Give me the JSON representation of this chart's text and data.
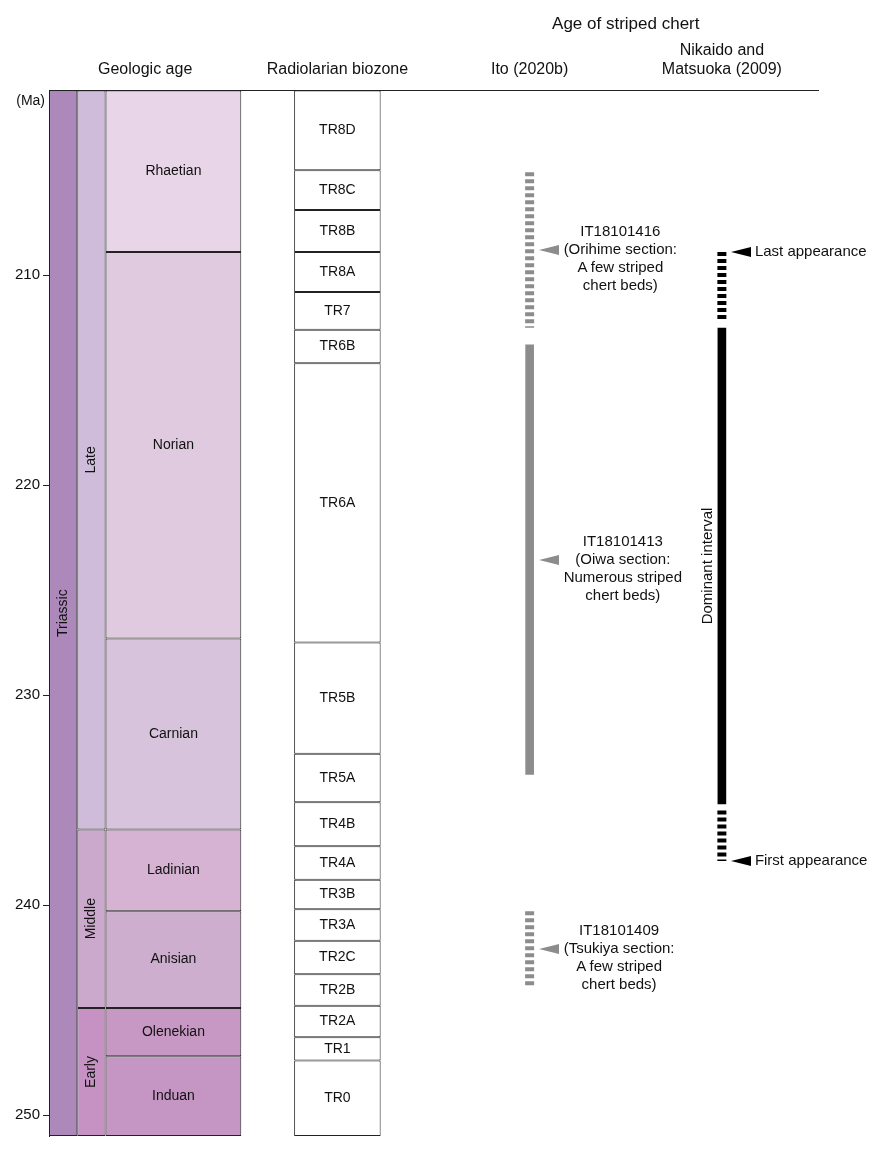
{
  "chart_data": {
    "type": "bar",
    "categories": [
      "Geologic age",
      "Radiolarian biozone",
      "Ito (2020b)",
      "Nikaido and Matsuoka (2009)"
    ],
    "ylabel": "(Ma)",
    "ylim": [
      251,
      201.2
    ],
    "yticks": [
      210,
      220,
      230,
      240,
      250
    ],
    "series": [
      {
        "color": "#ad88bb",
        "values": [
          49.8,
          null,
          null,
          null
        ],
        "base": [
          201.2,
          null,
          null,
          null
        ],
        "value_labels": [
          "Triassic",
          null,
          null,
          null
        ]
      },
      {
        "color": "#cfbcdb",
        "values": [
          35.2,
          null,
          null,
          null
        ],
        "base": [
          201.2,
          null,
          null,
          null
        ],
        "value_labels": [
          "Late",
          null,
          null,
          null
        ]
      },
      {
        "color": "#cba9cd",
        "values": [
          8.5,
          null,
          null,
          null
        ],
        "base": [
          236.4,
          null,
          null,
          null
        ],
        "value_labels": [
          "Middle",
          null,
          null,
          null
        ]
      },
      {
        "color": "#c592c3",
        "values": [
          6.1,
          null,
          null,
          null
        ],
        "base": [
          244.9,
          null,
          null,
          null
        ],
        "value_labels": [
          "Early",
          null,
          null,
          null
        ]
      },
      {
        "color": "#e8d5e8",
        "values": [
          7.7,
          null,
          null,
          null
        ],
        "base": [
          201.2,
          null,
          null,
          null
        ],
        "value_labels": [
          "Rhaetian",
          null,
          null,
          null
        ]
      },
      {
        "color": "#dfcadf",
        "values": [
          18.4,
          null,
          null,
          null
        ],
        "base": [
          208.9,
          null,
          null,
          null
        ],
        "value_labels": [
          "Norian",
          null,
          null,
          null
        ]
      },
      {
        "color": "#d8c3dc",
        "values": [
          9.1,
          null,
          null,
          null
        ],
        "base": [
          227.3,
          null,
          null,
          null
        ],
        "value_labels": [
          "Carnian",
          null,
          null,
          null
        ]
      },
      {
        "color": "#d6b2d3",
        "values": [
          3.9,
          null,
          null,
          null
        ],
        "base": [
          236.4,
          null,
          null,
          null
        ],
        "value_labels": [
          "Ladinian",
          null,
          null,
          null
        ]
      },
      {
        "color": "#ceaecf",
        "values": [
          4.6,
          null,
          null,
          null
        ],
        "base": [
          240.3,
          null,
          null,
          null
        ],
        "value_labels": [
          "Anisian",
          null,
          null,
          null
        ]
      },
      {
        "color": "#c798c4",
        "values": [
          2.3,
          null,
          null,
          null
        ],
        "base": [
          244.9,
          null,
          null,
          null
        ],
        "value_labels": [
          "Olenekian",
          null,
          null,
          null
        ]
      },
      {
        "color": "#c596c3",
        "values": [
          3.8,
          null,
          null,
          null
        ],
        "base": [
          247.2,
          null,
          null,
          null
        ],
        "value_labels": [
          "Induan",
          null,
          null,
          null
        ]
      },
      {
        "color": "#ffffff",
        "values": [
          null,
          3.8,
          null,
          null
        ],
        "base": [
          null,
          201.2,
          null,
          null
        ],
        "value_labels": [
          null,
          "TR8D",
          null,
          null
        ]
      },
      {
        "color": "#ffffff",
        "values": [
          null,
          1.9,
          null,
          null
        ],
        "base": [
          null,
          205.0,
          null,
          null
        ],
        "value_labels": [
          null,
          "TR8C",
          null,
          null
        ]
      },
      {
        "color": "#ffffff",
        "values": [
          null,
          2.0,
          null,
          null
        ],
        "base": [
          null,
          206.9,
          null,
          null
        ],
        "value_labels": [
          null,
          "TR8B",
          null,
          null
        ]
      },
      {
        "color": "#ffffff",
        "values": [
          null,
          1.9,
          null,
          null
        ],
        "base": [
          null,
          208.9,
          null,
          null
        ],
        "value_labels": [
          null,
          "TR8A",
          null,
          null
        ]
      },
      {
        "color": "#ffffff",
        "values": [
          null,
          1.8,
          null,
          null
        ],
        "base": [
          null,
          210.8,
          null,
          null
        ],
        "value_labels": [
          null,
          "TR7",
          null,
          null
        ]
      },
      {
        "color": "#ffffff",
        "values": [
          null,
          1.6,
          null,
          null
        ],
        "base": [
          null,
          212.6,
          null,
          null
        ],
        "value_labels": [
          null,
          "TR6B",
          null,
          null
        ]
      },
      {
        "color": "#ffffff",
        "values": [
          null,
          13.3,
          null,
          null
        ],
        "base": [
          null,
          214.2,
          null,
          null
        ],
        "value_labels": [
          null,
          "TR6A",
          null,
          null
        ]
      },
      {
        "color": "#ffffff",
        "values": [
          null,
          5.3,
          null,
          null
        ],
        "base": [
          null,
          227.5,
          null,
          null
        ],
        "value_labels": [
          null,
          "TR5B",
          null,
          null
        ]
      },
      {
        "color": "#ffffff",
        "values": [
          null,
          2.3,
          null,
          null
        ],
        "base": [
          null,
          232.8,
          null,
          null
        ],
        "value_labels": [
          null,
          "TR5A",
          null,
          null
        ]
      },
      {
        "color": "#ffffff",
        "values": [
          null,
          2.1,
          null,
          null
        ],
        "base": [
          null,
          235.1,
          null,
          null
        ],
        "value_labels": [
          null,
          "TR4B",
          null,
          null
        ]
      },
      {
        "color": "#ffffff",
        "values": [
          null,
          1.6,
          null,
          null
        ],
        "base": [
          null,
          237.2,
          null,
          null
        ],
        "value_labels": [
          null,
          "TR4A",
          null,
          null
        ]
      },
      {
        "color": "#ffffff",
        "values": [
          null,
          1.4,
          null,
          null
        ],
        "base": [
          null,
          238.8,
          null,
          null
        ],
        "value_labels": [
          null,
          "TR3B",
          null,
          null
        ]
      },
      {
        "color": "#ffffff",
        "values": [
          null,
          1.5,
          null,
          null
        ],
        "base": [
          null,
          240.2,
          null,
          null
        ],
        "value_labels": [
          null,
          "TR3A",
          null,
          null
        ]
      },
      {
        "color": "#ffffff",
        "values": [
          null,
          1.6,
          null,
          null
        ],
        "base": [
          null,
          241.7,
          null,
          null
        ],
        "value_labels": [
          null,
          "TR2C",
          null,
          null
        ]
      },
      {
        "color": "#ffffff",
        "values": [
          null,
          1.5,
          null,
          null
        ],
        "base": [
          null,
          243.3,
          null,
          null
        ],
        "value_labels": [
          null,
          "TR2B",
          null,
          null
        ]
      },
      {
        "color": "#ffffff",
        "values": [
          null,
          1.5,
          null,
          null
        ],
        "base": [
          null,
          244.8,
          null,
          null
        ],
        "value_labels": [
          null,
          "TR2A",
          null,
          null
        ]
      },
      {
        "color": "#ffffff",
        "values": [
          null,
          1.1,
          null,
          null
        ],
        "base": [
          null,
          246.3,
          null,
          null
        ],
        "value_labels": [
          null,
          "TR1",
          null,
          null
        ]
      },
      {
        "color": "#ffffff",
        "values": [
          null,
          3.6,
          null,
          null
        ],
        "base": [
          null,
          247.4,
          null,
          null
        ],
        "value_labels": [
          null,
          "TR0",
          null,
          null
        ]
      },
      {
        "name": "IT18101413 (Oiwa section: Numerous striped chert beds)",
        "color": "#8c8c8c",
        "values": [
          null,
          null,
          20.5,
          null
        ],
        "base": [
          null,
          null,
          213.3,
          null
        ]
      },
      {
        "name": "Dominant interval",
        "color": "#000000",
        "values": [
          null,
          null,
          null,
          22.7
        ],
        "base": [
          null,
          null,
          null,
          212.5
        ]
      },
      {
        "name": "IT18101416 (Orihime section: A few striped chert beds)",
        "type": "line",
        "color": "#8c8c8c",
        "line_style": "dashed",
        "x": [
          "Ito (2020b)",
          "Ito (2020b)"
        ],
        "values": [
          205.1,
          212.5
        ]
      },
      {
        "name": "IT18101409 (Tsukiya section: A few striped chert beds)",
        "type": "line",
        "color": "#8c8c8c",
        "line_style": "dashed",
        "x": [
          "Ito (2020b)",
          "Ito (2020b)"
        ],
        "values": [
          240.3,
          243.9
        ]
      },
      {
        "type": "line",
        "color": "#000000",
        "line_style": "dashed",
        "x": [
          "Nikaido and Matsuoka (2009)",
          "Nikaido and Matsuoka (2009)"
        ],
        "values": [
          208.9,
          212.2
        ]
      },
      {
        "type": "line",
        "color": "#000000",
        "line_style": "dashed",
        "x": [
          "Nikaido and Matsuoka (2009)",
          "Nikaido and Matsuoka (2009)"
        ],
        "values": [
          235.5,
          237.9
        ]
      }
    ],
    "annotations": [
      "Age of striped chert",
      {
        "text": "Last appearance",
        "x": "Nikaido and Matsuoka (2009)",
        "y": 208.9
      },
      {
        "text": "First appearance",
        "x": "Nikaido and Matsuoka (2009)",
        "y": 237.9
      }
    ]
  }
}
